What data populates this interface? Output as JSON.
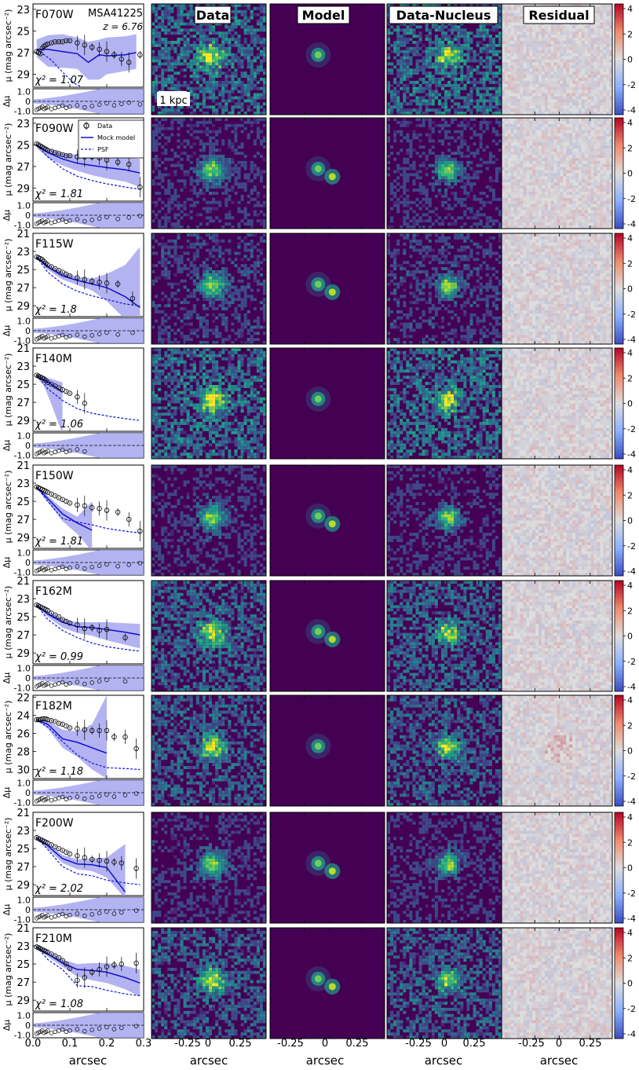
{
  "figure": {
    "object_name": "MSA41225",
    "redshift_label": "z = 6.76",
    "scale_bar_label": "1 kpc",
    "column_titles": [
      "Data",
      "Model",
      "Data-Nucleus",
      "Residual"
    ],
    "xlabel": "arcsec",
    "profile_ylabel": "μ (mag arcsec⁻²)",
    "residual_ylabel": "Δμ",
    "image_xticks": [
      "-0.25",
      "0",
      "0.25"
    ],
    "profile_xticks": [
      "0.0",
      "0.1",
      "0.2",
      "0.3"
    ],
    "colorbar_ticks": [
      "4",
      "2",
      "0",
      "-2",
      "-4"
    ],
    "legend": [
      "Data",
      "Mock model",
      "PSF"
    ],
    "colors": {
      "model_line": "#1010d0",
      "model_band": "#9999ee",
      "psf_line": "#1010e0",
      "data_marker": "#000000",
      "image_bg": "#440154",
      "residual_pos": "#b40426",
      "residual_neg": "#3b4cc0"
    }
  },
  "chart_data": [
    {
      "type": "line",
      "band": "F070W",
      "chi2_label": "χ² = 1.07",
      "yticks": [
        "23",
        "25",
        "27",
        "29"
      ],
      "ylim": [
        30.2,
        22.5
      ],
      "resid_yticks": [
        "1.0",
        "0",
        "-1.0"
      ],
      "data_r": [
        0.01,
        0.015,
        0.02,
        0.025,
        0.03,
        0.035,
        0.04,
        0.05,
        0.06,
        0.07,
        0.08,
        0.09,
        0.1,
        0.12,
        0.14,
        0.16,
        0.18,
        0.2,
        0.22,
        0.24,
        0.26,
        0.29
      ],
      "data_mu": [
        26.9,
        27.0,
        27.1,
        26.6,
        26.4,
        26.3,
        26.2,
        26.1,
        26.0,
        26.0,
        26.0,
        25.9,
        25.9,
        26.1,
        26.3,
        26.5,
        26.7,
        26.9,
        27.2,
        27.6,
        27.9,
        27.2
      ],
      "model_r": [
        0.01,
        0.04,
        0.08,
        0.12,
        0.15,
        0.18,
        0.2,
        0.25,
        0.28
      ],
      "model_mu": [
        26.7,
        26.7,
        26.9,
        27.1,
        27.9,
        27.2,
        27.3,
        27.2,
        27.0
      ],
      "band_hi": [
        25.8,
        25.4,
        25.3,
        25.6,
        26.0,
        25.8,
        25.6,
        25.5,
        25.3
      ],
      "band_lo": [
        27.4,
        28.3,
        28.4,
        28.5,
        29.5,
        29.5,
        29.0,
        28.7,
        28.5
      ],
      "psf_r": [
        0.01,
        0.05,
        0.08,
        0.11,
        0.15,
        0.2
      ],
      "psf_mu": [
        26.7,
        27.7,
        28.8,
        29.8,
        30.5,
        31.2
      ]
    },
    {
      "type": "line",
      "band": "F090W",
      "chi2_label": "χ² = 1.81",
      "yticks": [
        "23",
        "25",
        "27",
        "29"
      ],
      "ylim": [
        30.2,
        22.5
      ],
      "resid_yticks": [
        "1.0",
        "0",
        "-1.0"
      ],
      "data_r": [
        0.01,
        0.015,
        0.02,
        0.025,
        0.03,
        0.035,
        0.04,
        0.05,
        0.06,
        0.07,
        0.08,
        0.09,
        0.1,
        0.12,
        0.14,
        0.16,
        0.18,
        0.2,
        0.23,
        0.26,
        0.29
      ],
      "data_mu": [
        24.9,
        25.0,
        25.1,
        25.2,
        25.3,
        25.4,
        25.5,
        25.6,
        25.7,
        25.8,
        25.9,
        26.0,
        26.0,
        26.1,
        26.1,
        26.1,
        26.2,
        26.4,
        26.6,
        26.8,
        28.9
      ],
      "model_r": [
        0.01,
        0.04,
        0.08,
        0.12,
        0.16,
        0.2,
        0.25,
        0.29
      ],
      "model_mu": [
        25.0,
        25.7,
        26.3,
        26.7,
        26.9,
        27.1,
        27.3,
        27.6
      ],
      "band_hi": [
        24.8,
        25.3,
        25.8,
        25.9,
        25.9,
        26.0,
        26.2,
        26.3
      ],
      "band_lo": [
        25.3,
        26.2,
        26.9,
        27.4,
        27.8,
        28.1,
        28.4,
        28.9
      ],
      "psf_r": [
        0.01,
        0.04,
        0.08,
        0.12,
        0.16,
        0.2,
        0.25,
        0.29
      ],
      "psf_mu": [
        25.0,
        26.1,
        27.2,
        27.9,
        28.3,
        28.6,
        28.9,
        29.1
      ]
    },
    {
      "type": "line",
      "band": "F115W",
      "chi2_label": "χ² = 1.8",
      "yticks": [
        "21",
        "23",
        "25",
        "27",
        "29"
      ],
      "ylim": [
        30.2,
        21
      ],
      "resid_yticks": [
        "1.0",
        "0",
        "-1.0"
      ],
      "data_r": [
        0.01,
        0.015,
        0.02,
        0.025,
        0.03,
        0.035,
        0.04,
        0.05,
        0.06,
        0.07,
        0.08,
        0.09,
        0.1,
        0.12,
        0.14,
        0.16,
        0.18,
        0.2,
        0.23,
        0.27
      ],
      "data_mu": [
        23.6,
        23.7,
        23.8,
        23.9,
        24.1,
        24.3,
        24.5,
        24.7,
        24.9,
        25.1,
        25.3,
        25.5,
        25.7,
        25.9,
        26.1,
        26.3,
        26.4,
        26.5,
        26.6,
        28.2
      ],
      "model_r": [
        0.01,
        0.04,
        0.08,
        0.12,
        0.16,
        0.2,
        0.25,
        0.29
      ],
      "model_mu": [
        23.6,
        24.7,
        25.7,
        26.2,
        26.6,
        27.0,
        28.0,
        29.2
      ],
      "band_hi": [
        23.5,
        24.4,
        25.3,
        25.8,
        26.0,
        25.5,
        24.5,
        22.5
      ],
      "band_lo": [
        23.8,
        25.0,
        26.1,
        26.7,
        27.3,
        28.5,
        30.5,
        30.5
      ],
      "psf_r": [
        0.01,
        0.04,
        0.08,
        0.12,
        0.16,
        0.2,
        0.25,
        0.29
      ],
      "psf_mu": [
        23.6,
        25.3,
        26.6,
        27.4,
        27.9,
        28.3,
        28.8,
        29.0
      ]
    },
    {
      "type": "line",
      "band": "F140M",
      "chi2_label": "χ² = 1.06",
      "yticks": [
        "21",
        "23",
        "25",
        "27",
        "29"
      ],
      "ylim": [
        30.2,
        21
      ],
      "resid_yticks": [
        "1.0",
        "0",
        "-1.0"
      ],
      "data_r": [
        0.01,
        0.015,
        0.02,
        0.025,
        0.03,
        0.035,
        0.04,
        0.05,
        0.06,
        0.07,
        0.08,
        0.09,
        0.1,
        0.12,
        0.14
      ],
      "data_mu": [
        24.0,
        24.1,
        24.2,
        24.3,
        24.4,
        24.6,
        24.8,
        25.0,
        25.2,
        25.4,
        25.6,
        25.8,
        26.0,
        26.4,
        27.1
      ],
      "model_r": [
        0.01,
        0.03,
        0.05,
        0.08
      ],
      "model_mu": [
        24.0,
        24.5,
        25.0,
        25.9
      ],
      "band_hi": [
        23.9,
        24.2,
        24.4,
        24.8
      ],
      "band_lo": [
        24.2,
        25.2,
        27.2,
        30.5
      ],
      "psf_r": [
        0.01,
        0.04,
        0.08,
        0.12,
        0.16,
        0.2,
        0.25,
        0.29
      ],
      "psf_mu": [
        24.0,
        25.5,
        26.8,
        27.7,
        28.2,
        28.5,
        28.8,
        29.0
      ]
    },
    {
      "type": "line",
      "band": "F150W",
      "chi2_label": "χ² = 1.81",
      "yticks": [
        "21",
        "23",
        "25",
        "27",
        "29"
      ],
      "ylim": [
        30.2,
        21
      ],
      "resid_yticks": [
        "1.0",
        "0",
        "-1.0"
      ],
      "data_r": [
        0.01,
        0.015,
        0.02,
        0.025,
        0.03,
        0.035,
        0.04,
        0.05,
        0.06,
        0.07,
        0.08,
        0.09,
        0.1,
        0.12,
        0.14,
        0.16,
        0.18,
        0.2,
        0.23,
        0.26,
        0.29
      ],
      "data_mu": [
        23.4,
        23.5,
        23.6,
        23.7,
        23.8,
        23.9,
        24.0,
        24.2,
        24.4,
        24.6,
        24.8,
        25.0,
        25.2,
        25.4,
        25.5,
        25.7,
        25.8,
        26.0,
        26.2,
        27.0,
        28.3
      ],
      "model_r": [
        0.01,
        0.04,
        0.08,
        0.12,
        0.16
      ],
      "model_mu": [
        23.4,
        24.7,
        26.4,
        27.4,
        28.2
      ],
      "band_hi": [
        23.3,
        24.4,
        25.8,
        26.7,
        25.0
      ],
      "band_lo": [
        23.6,
        25.1,
        27.2,
        28.6,
        30.5
      ],
      "psf_r": [
        0.01,
        0.04,
        0.08,
        0.12,
        0.16,
        0.2,
        0.25,
        0.29
      ],
      "psf_mu": [
        23.4,
        25.0,
        26.9,
        27.3,
        27.6,
        28.0,
        28.3,
        28.5
      ]
    },
    {
      "type": "line",
      "band": "F162M",
      "chi2_label": "χ² = 0.99",
      "yticks": [
        "21",
        "23",
        "25",
        "27",
        "29"
      ],
      "ylim": [
        30.2,
        21
      ],
      "resid_yticks": [
        "1.0",
        "0",
        "-1.0"
      ],
      "data_r": [
        0.01,
        0.015,
        0.02,
        0.025,
        0.03,
        0.035,
        0.04,
        0.05,
        0.06,
        0.07,
        0.08,
        0.09,
        0.1,
        0.12,
        0.14,
        0.16,
        0.18,
        0.2,
        0.25
      ],
      "data_mu": [
        23.7,
        23.8,
        23.9,
        24.0,
        24.1,
        24.2,
        24.3,
        24.6,
        24.8,
        25.0,
        25.3,
        25.5,
        25.7,
        25.9,
        26.3,
        26.2,
        26.5,
        26.4,
        27.3
      ],
      "model_r": [
        0.01,
        0.04,
        0.08,
        0.12,
        0.16,
        0.2,
        0.25,
        0.29
      ],
      "model_mu": [
        23.7,
        24.7,
        25.6,
        26.1,
        26.2,
        26.4,
        26.7,
        27.0
      ],
      "band_hi": [
        23.6,
        24.4,
        25.2,
        25.6,
        25.6,
        25.6,
        25.7,
        25.8
      ],
      "band_lo": [
        23.9,
        25.0,
        26.2,
        26.8,
        27.1,
        27.6,
        28.1,
        28.5
      ],
      "psf_r": [
        0.01,
        0.04,
        0.08,
        0.12,
        0.16,
        0.2,
        0.25,
        0.29
      ],
      "psf_mu": [
        23.7,
        25.3,
        26.5,
        27.3,
        27.9,
        28.3,
        28.6,
        28.8
      ]
    },
    {
      "type": "line",
      "band": "F182M",
      "chi2_label": "χ² = 1.18",
      "yticks": [
        "22",
        "24",
        "26",
        "28",
        "30"
      ],
      "ylim": [
        31,
        21.8
      ],
      "resid_yticks": [
        "1.0",
        "0",
        "-1.0"
      ],
      "data_r": [
        0.01,
        0.015,
        0.02,
        0.025,
        0.03,
        0.035,
        0.04,
        0.05,
        0.06,
        0.07,
        0.08,
        0.09,
        0.1,
        0.12,
        0.14,
        0.16,
        0.18,
        0.2,
        0.22,
        0.25,
        0.28
      ],
      "data_mu": [
        24.5,
        24.5,
        24.5,
        24.4,
        24.4,
        24.4,
        24.5,
        24.6,
        24.7,
        24.9,
        25.0,
        25.2,
        25.4,
        25.5,
        25.6,
        25.7,
        25.7,
        25.7,
        26.4,
        26.4,
        27.7
      ],
      "model_r": [
        0.01,
        0.04,
        0.08,
        0.12,
        0.16,
        0.2
      ],
      "model_mu": [
        24.5,
        25.0,
        26.6,
        27.0,
        27.6,
        28.2
      ],
      "band_hi": [
        24.4,
        24.6,
        25.6,
        25.8,
        25.0,
        21.8
      ],
      "band_lo": [
        24.6,
        25.5,
        27.6,
        28.6,
        30.0,
        31.0
      ],
      "psf_r": [
        0.01,
        0.04,
        0.08,
        0.12,
        0.16,
        0.2,
        0.25,
        0.29
      ],
      "psf_mu": [
        24.5,
        25.3,
        26.9,
        28.4,
        29.3,
        29.8,
        29.9,
        30.0
      ]
    },
    {
      "type": "line",
      "band": "F200W",
      "chi2_label": "χ² = 2.02",
      "yticks": [
        "21",
        "23",
        "25",
        "27",
        "29"
      ],
      "ylim": [
        30.2,
        21
      ],
      "resid_yticks": [
        "1.0",
        "0",
        "-1.0"
      ],
      "data_r": [
        0.01,
        0.015,
        0.02,
        0.025,
        0.03,
        0.035,
        0.04,
        0.05,
        0.06,
        0.07,
        0.08,
        0.09,
        0.1,
        0.12,
        0.14,
        0.16,
        0.18,
        0.2,
        0.22,
        0.24,
        0.28
      ],
      "data_mu": [
        23.8,
        23.9,
        24.0,
        24.1,
        24.2,
        24.3,
        24.4,
        24.6,
        24.8,
        25.0,
        25.2,
        25.4,
        25.6,
        25.8,
        26.0,
        26.2,
        26.3,
        26.4,
        26.5,
        26.6,
        27.2
      ],
      "model_r": [
        0.01,
        0.04,
        0.08,
        0.12,
        0.16,
        0.2,
        0.25
      ],
      "model_mu": [
        23.8,
        24.7,
        26.1,
        26.7,
        26.8,
        27.1,
        29.8
      ],
      "band_hi": [
        23.7,
        24.4,
        25.7,
        26.2,
        26.1,
        26.0,
        24.5
      ],
      "band_lo": [
        23.9,
        25.0,
        26.6,
        27.3,
        27.5,
        28.2,
        30.5
      ],
      "psf_r": [
        0.01,
        0.04,
        0.08,
        0.12,
        0.16,
        0.2,
        0.25,
        0.29
      ],
      "psf_mu": [
        23.8,
        25.1,
        27.0,
        27.8,
        28.0,
        28.5,
        28.8,
        29.0
      ]
    },
    {
      "type": "line",
      "band": "F210M",
      "chi2_label": "χ² = 1.08",
      "yticks": [
        "21",
        "23",
        "25",
        "27",
        "29"
      ],
      "ylim": [
        30.2,
        21
      ],
      "resid_yticks": [
        "1.0",
        "0",
        "-1.0"
      ],
      "data_r": [
        0.01,
        0.015,
        0.02,
        0.025,
        0.03,
        0.035,
        0.04,
        0.05,
        0.06,
        0.07,
        0.08,
        0.09,
        0.1,
        0.12,
        0.14,
        0.16,
        0.18,
        0.2,
        0.22,
        0.24,
        0.28
      ],
      "data_mu": [
        23.1,
        23.2,
        23.3,
        23.4,
        23.5,
        23.6,
        23.7,
        23.9,
        24.1,
        24.3,
        24.6,
        25.0,
        25.5,
        26.8,
        26.5,
        25.9,
        25.6,
        25.3,
        25.1,
        25.0,
        24.9
      ],
      "model_r": [
        0.01,
        0.04,
        0.08,
        0.12,
        0.16,
        0.2,
        0.25,
        0.29
      ],
      "model_mu": [
        23.1,
        23.9,
        24.9,
        25.6,
        25.7,
        25.9,
        26.5,
        27.1
      ],
      "band_hi": [
        23.0,
        23.6,
        24.5,
        25.0,
        24.9,
        24.9,
        25.2,
        25.6
      ],
      "band_lo": [
        23.2,
        24.2,
        25.3,
        26.4,
        26.8,
        27.1,
        27.8,
        28.6
      ],
      "psf_r": [
        0.01,
        0.04,
        0.08,
        0.12,
        0.16,
        0.2,
        0.25,
        0.29
      ],
      "psf_mu": [
        23.1,
        24.5,
        25.6,
        27.4,
        27.5,
        27.9,
        28.3,
        28.5
      ]
    }
  ]
}
